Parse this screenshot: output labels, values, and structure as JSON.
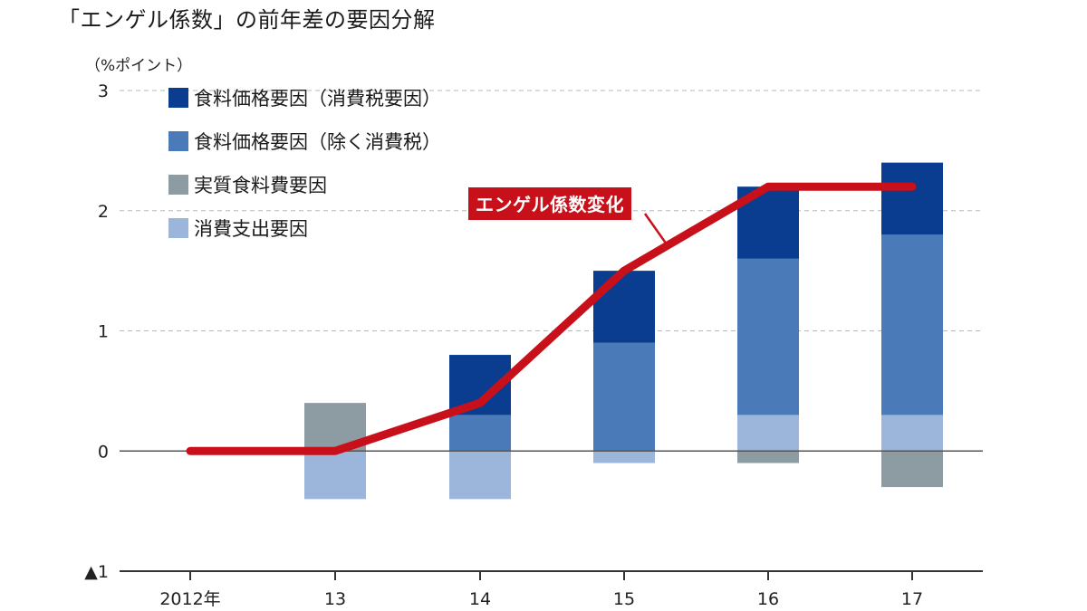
{
  "chart_data": {
    "type": "bar",
    "stacked": true,
    "title": "「エンゲル係数」の前年差の要因分解",
    "unit_label": "（%ポイント）",
    "categories": [
      "2012年",
      "13",
      "14",
      "15",
      "16",
      "17"
    ],
    "ylim": [
      -1,
      3
    ],
    "yticks": [
      {
        "value": 3,
        "label": "3"
      },
      {
        "value": 2,
        "label": "2"
      },
      {
        "value": 1,
        "label": "1"
      },
      {
        "value": 0,
        "label": "0"
      },
      {
        "value": -1,
        "label": "▲1"
      }
    ],
    "grid": true,
    "legend_position": "top-left",
    "series": [
      {
        "name": "消費支出要因",
        "color": "#9cb6db",
        "values": [
          0,
          -0.4,
          -0.4,
          -0.1,
          0.3,
          0.3
        ]
      },
      {
        "name": "実質食料費要因",
        "color": "#8c9ca2",
        "values": [
          0,
          0.4,
          0,
          0,
          -0.1,
          -0.3
        ]
      },
      {
        "name": "食料価格要因（除く消費税）",
        "color": "#4a7ab8",
        "values": [
          0,
          0,
          0.3,
          0.9,
          1.3,
          1.5
        ]
      },
      {
        "name": "食料価格要因（消費税要因）",
        "color": "#0a3d8f",
        "values": [
          0,
          0,
          0.5,
          0.6,
          0.6,
          0.6
        ]
      }
    ],
    "legend_order": [
      3,
      2,
      1,
      0
    ],
    "line": {
      "name": "エンゲル係数変化",
      "color": "#c8101a",
      "values": [
        0,
        0,
        0.4,
        1.5,
        2.2,
        2.2
      ]
    }
  }
}
